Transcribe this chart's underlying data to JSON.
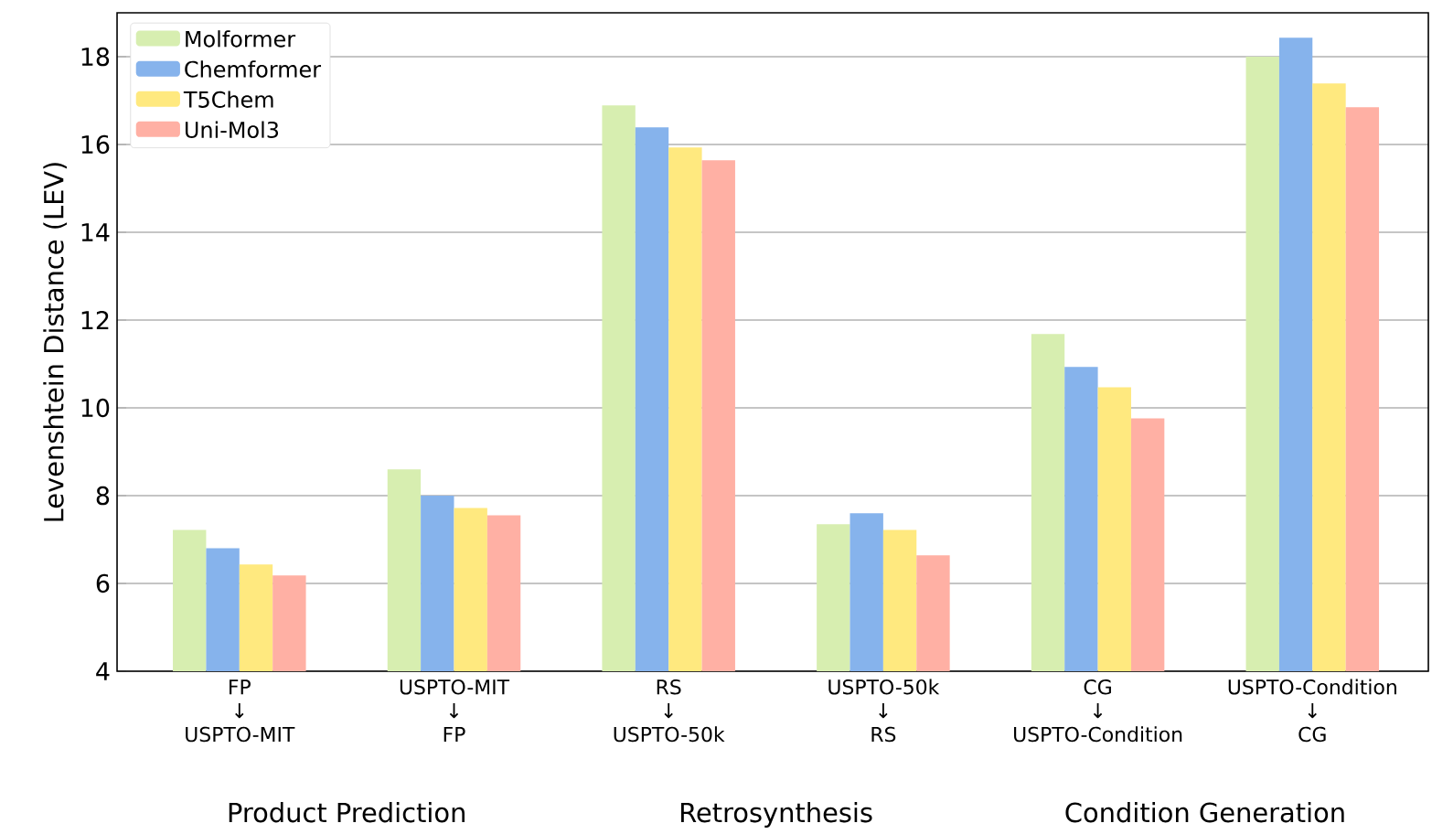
{
  "chart_data": {
    "type": "bar",
    "ylabel": "Levenshtein Distance (LEV)",
    "categories": [
      "FP ↓ USPTO-MIT",
      "USPTO-MIT ↓ FP",
      "RS ↓ USPTO-50k",
      "USPTO-50k ↓ RS",
      "CG ↓ USPTO-Condition",
      "USPTO-Condition ↓ CG"
    ],
    "series": [
      {
        "name": "Molformer",
        "color": "#d7eeb0",
        "values": [
          7.22,
          8.6,
          16.89,
          7.35,
          11.68,
          18.0
        ]
      },
      {
        "name": "Chemformer",
        "color": "#86b3ec",
        "values": [
          6.8,
          8.0,
          16.39,
          7.6,
          10.93,
          18.43
        ]
      },
      {
        "name": "T5Chem",
        "color": "#ffe97f",
        "values": [
          6.43,
          7.72,
          15.93,
          7.22,
          10.47,
          17.39
        ]
      },
      {
        "name": "Uni-Mol3",
        "color": "#ffb0a4",
        "values": [
          6.18,
          7.55,
          15.64,
          6.64,
          9.76,
          16.85
        ]
      }
    ],
    "annotations": [
      "Product Prediction",
      "Retrosynthesis",
      "Condition Generation"
    ],
    "ylim": [
      4,
      19
    ],
    "yticks": [
      4,
      6,
      8,
      10,
      12,
      14,
      16,
      18
    ],
    "grid": "y",
    "legend": "top left"
  }
}
